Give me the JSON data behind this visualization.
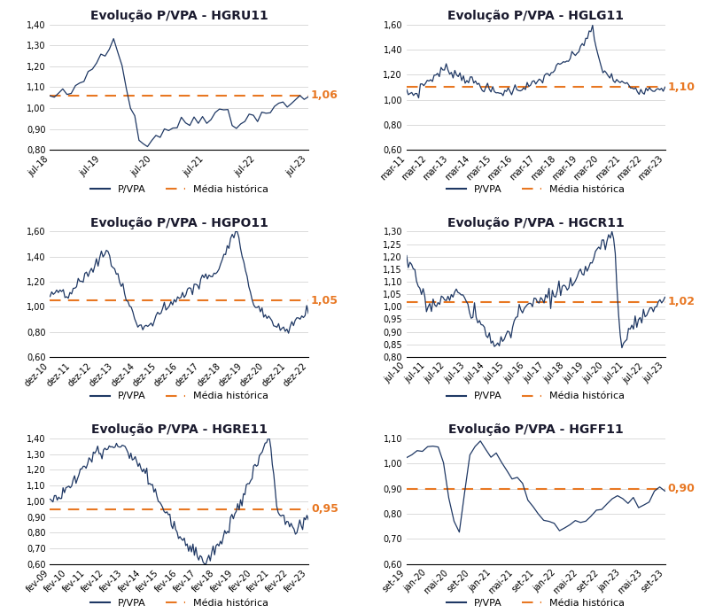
{
  "charts": [
    {
      "title": "Evolução P/VPA - HGRU11",
      "media": 1.06,
      "media_label": "1,06",
      "ylim": [
        0.8,
        1.4
      ],
      "yticks": [
        0.8,
        0.9,
        1.0,
        1.1,
        1.2,
        1.3,
        1.4
      ],
      "xtick_labels": [
        "jul-18",
        "jul-19",
        "jul-20",
        "jul-21",
        "jul-22",
        "jul-23"
      ],
      "n_points": 62,
      "seed": 42,
      "profile": "HGRU11"
    },
    {
      "title": "Evolução P/VPA - HGLG11",
      "media": 1.1,
      "media_label": "1,10",
      "ylim": [
        0.6,
        1.6
      ],
      "yticks": [
        0.6,
        0.8,
        1.0,
        1.2,
        1.4,
        1.6
      ],
      "xtick_labels": [
        "mar-11",
        "mar-12",
        "mar-13",
        "mar-14",
        "mar-15",
        "mar-16",
        "mar-17",
        "mar-18",
        "mar-19",
        "mar-20",
        "mar-21",
        "mar-22",
        "mar-23"
      ],
      "n_points": 151,
      "seed": 7,
      "profile": "HGLG11"
    },
    {
      "title": "Evolução P/VPA - HGPO11",
      "media": 1.05,
      "media_label": "1,05",
      "ylim": [
        0.6,
        1.6
      ],
      "yticks": [
        0.6,
        0.8,
        1.0,
        1.2,
        1.4,
        1.6
      ],
      "xtick_labels": [
        "dez-10",
        "dez-11",
        "dez-12",
        "dez-13",
        "dez-14",
        "dez-15",
        "dez-16",
        "dez-17",
        "dez-18",
        "dez-19",
        "dez-20",
        "dez-21",
        "dez-22"
      ],
      "n_points": 157,
      "seed": 13,
      "profile": "HGPO11"
    },
    {
      "title": "Evolução P/VPA - HGCR11",
      "media": 1.02,
      "media_label": "1,02",
      "ylim": [
        0.8,
        1.3
      ],
      "yticks": [
        0.8,
        0.85,
        0.9,
        0.95,
        1.0,
        1.05,
        1.1,
        1.15,
        1.2,
        1.25,
        1.3
      ],
      "xtick_labels": [
        "jul-10",
        "jul-11",
        "jul-12",
        "jul-13",
        "jul-14",
        "jul-15",
        "jul-16",
        "jul-17",
        "jul-18",
        "jul-19",
        "jul-20",
        "jul-21",
        "jul-22",
        "jul-23"
      ],
      "n_points": 157,
      "seed": 17,
      "profile": "HGCR11"
    },
    {
      "title": "Evolução P/VPA - HGRE11",
      "media": 0.95,
      "media_label": "0,95",
      "ylim": [
        0.6,
        1.4
      ],
      "yticks": [
        0.6,
        0.7,
        0.8,
        0.9,
        1.0,
        1.1,
        1.2,
        1.3,
        1.4
      ],
      "xtick_labels": [
        "fev-09",
        "fev-10",
        "fev-11",
        "fev-12",
        "fev-13",
        "fev-14",
        "fev-15",
        "fev-16",
        "fev-17",
        "fev-18",
        "fev-19",
        "fev-20",
        "fev-21",
        "fev-22",
        "fev-23"
      ],
      "n_points": 180,
      "seed": 23,
      "profile": "HGRE11"
    },
    {
      "title": "Evolução P/VPA - HGFF11",
      "media": 0.9,
      "media_label": "0,90",
      "ylim": [
        0.6,
        1.1
      ],
      "yticks": [
        0.6,
        0.7,
        0.8,
        0.9,
        1.0,
        1.1
      ],
      "xtick_labels": [
        "set-19",
        "jan-20",
        "mai-20",
        "set-20",
        "jan-21",
        "mai-21",
        "set-21",
        "jan-22",
        "mai-22",
        "set-22",
        "jan-23",
        "mai-23",
        "set-23"
      ],
      "n_points": 50,
      "seed": 31,
      "profile": "HGFF11"
    }
  ],
  "line_color": "#1f3864",
  "dashed_color": "#e87722",
  "background_color": "#ffffff",
  "title_fontsize": 10,
  "tick_fontsize": 7,
  "legend_fontsize": 8,
  "label_color": "#e87722",
  "label_fontsize": 9
}
